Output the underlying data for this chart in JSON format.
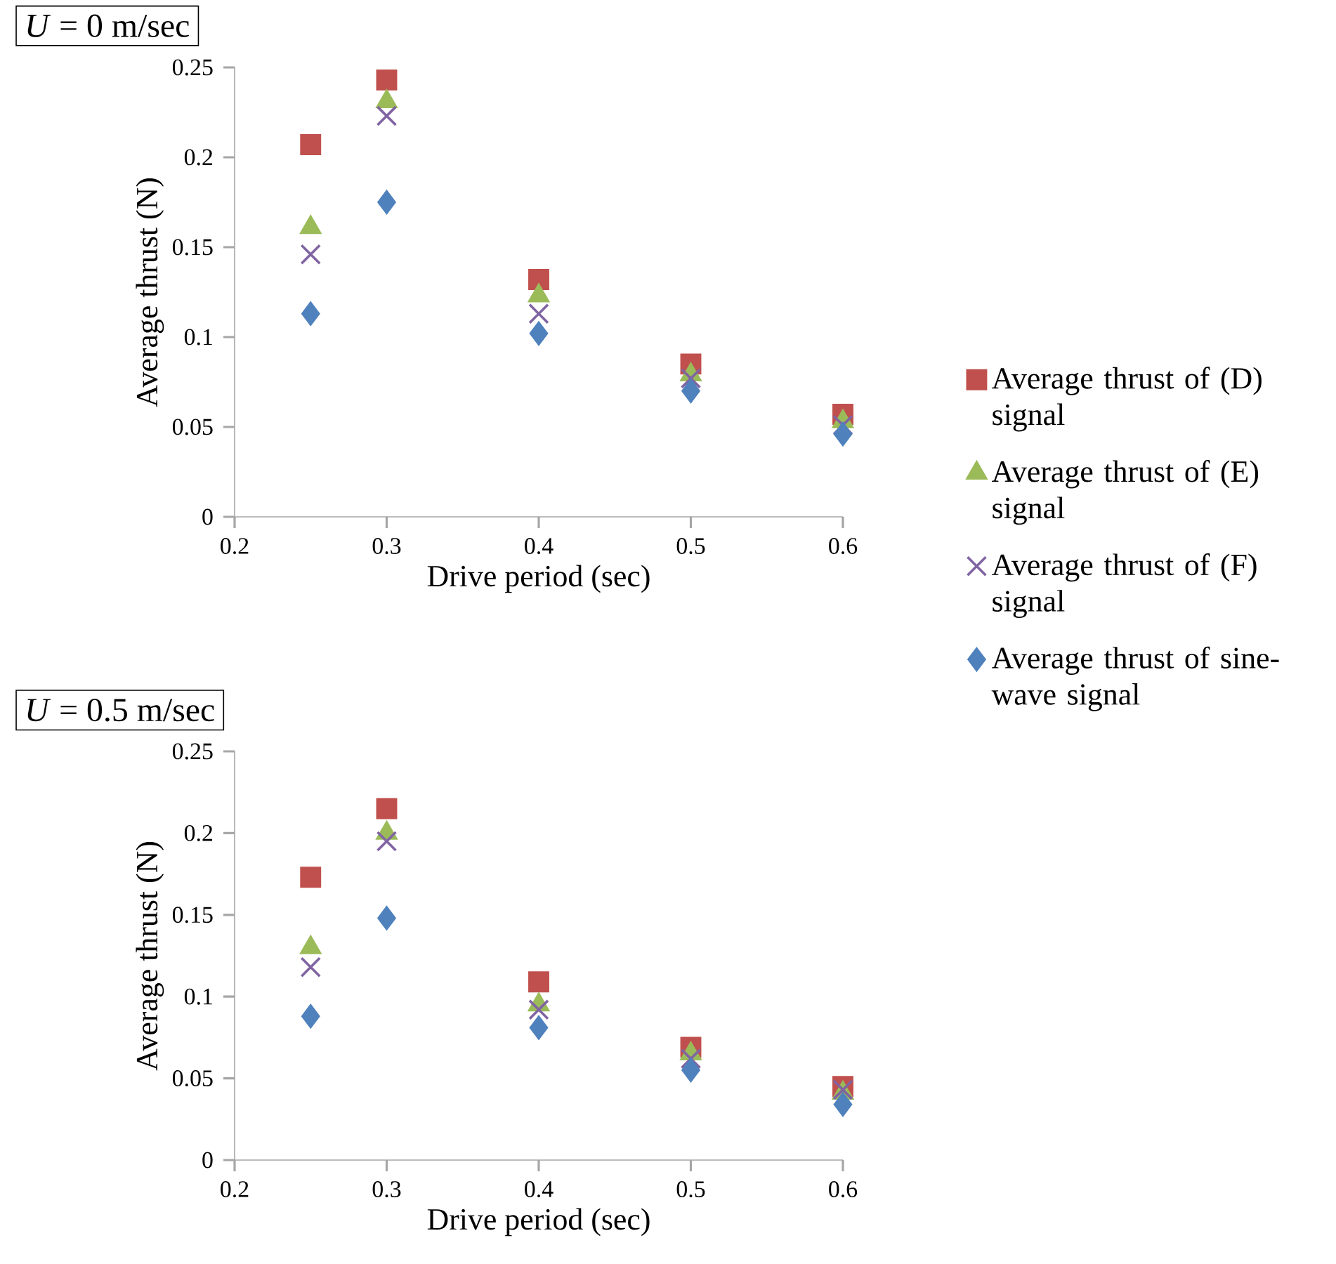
{
  "chart_data": [
    {
      "type": "scatter",
      "title": "*U* = 0 m/sec",
      "xlabel": "Drive period (sec)",
      "ylabel": "Average thrust (N)",
      "x": [
        0.25,
        0.3,
        0.4,
        0.5,
        0.6
      ],
      "xlim": [
        0.2,
        0.6
      ],
      "xticks": [
        0.2,
        0.3,
        0.4,
        0.5,
        0.6
      ],
      "ylim": [
        0,
        0.25
      ],
      "yticks": [
        0,
        0.05,
        0.1,
        0.15,
        0.2,
        0.25
      ],
      "grid": false,
      "legend": "right",
      "series": [
        {
          "name": "Average thrust of (D) signal",
          "color": "#c0504d",
          "marker": "square",
          "values": [
            0.207,
            0.243,
            0.132,
            0.085,
            0.057
          ]
        },
        {
          "name": "Average thrust of (E) signal",
          "color": "#9bbb59",
          "marker": "triangle",
          "values": [
            0.161,
            0.231,
            0.123,
            0.079,
            0.053
          ]
        },
        {
          "name": "Average thrust of (F) signal",
          "color": "#8064a2",
          "marker": "cross",
          "values": [
            0.146,
            0.223,
            0.113,
            0.077,
            0.051
          ]
        },
        {
          "name": "Average thrust of sine-wave signal",
          "color": "#4f81bd",
          "marker": "diamond",
          "values": [
            0.113,
            0.175,
            0.102,
            0.07,
            0.046
          ]
        }
      ]
    },
    {
      "type": "scatter",
      "title": "*U* = 0.5 m/sec",
      "xlabel": "Drive period (sec)",
      "ylabel": "Average thrust (N)",
      "x": [
        0.25,
        0.3,
        0.4,
        0.5,
        0.6
      ],
      "xlim": [
        0.2,
        0.6
      ],
      "xticks": [
        0.2,
        0.3,
        0.4,
        0.5,
        0.6
      ],
      "ylim": [
        0,
        0.25
      ],
      "yticks": [
        0,
        0.05,
        0.1,
        0.15,
        0.2,
        0.25
      ],
      "grid": false,
      "legend": false,
      "series": [
        {
          "color": "#c0504d",
          "marker": "square",
          "values": [
            0.173,
            0.215,
            0.109,
            0.069,
            0.045
          ]
        },
        {
          "color": "#9bbb59",
          "marker": "triangle",
          "values": [
            0.13,
            0.2,
            0.095,
            0.065,
            0.041
          ]
        },
        {
          "color": "#8064a2",
          "marker": "cross",
          "values": [
            0.118,
            0.195,
            0.092,
            0.062,
            0.043
          ]
        },
        {
          "color": "#4f81bd",
          "marker": "diamond",
          "values": [
            0.088,
            0.148,
            0.081,
            0.055,
            0.034
          ]
        }
      ]
    }
  ]
}
